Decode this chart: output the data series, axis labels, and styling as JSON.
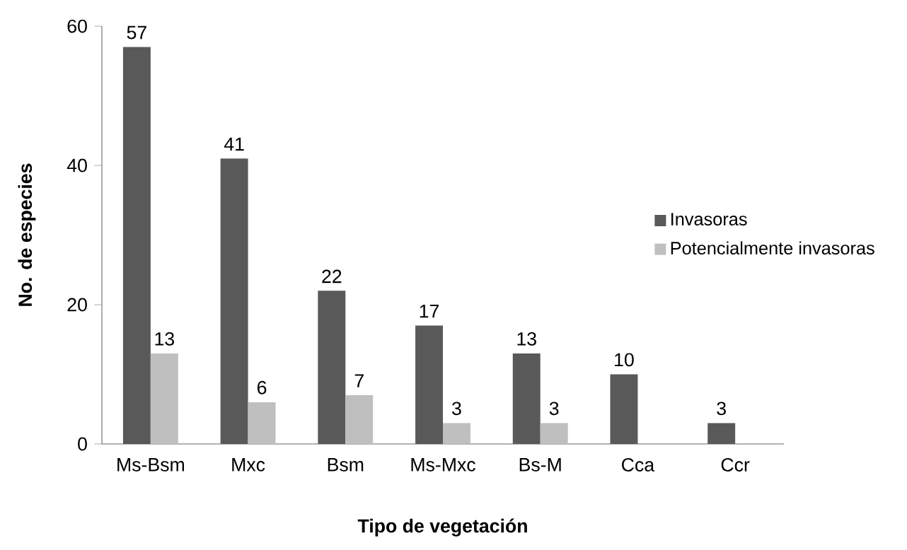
{
  "chart_data": {
    "type": "bar",
    "xlabel": "Tipo de vegetación",
    "ylabel": "No. de especies",
    "categories": [
      "Ms-Bsm",
      "Mxc",
      "Bsm",
      "Ms-Mxc",
      "Bs-M",
      "Cca",
      "Ccr"
    ],
    "series": [
      {
        "name": "Invasoras",
        "color": "#595959",
        "values": [
          57,
          41,
          22,
          17,
          13,
          10,
          3
        ]
      },
      {
        "name": "Potencialmente invasoras",
        "color": "#bfbfbf",
        "values": [
          13,
          6,
          7,
          3,
          3,
          null,
          null
        ]
      }
    ],
    "ylim": [
      0,
      60
    ],
    "yticks": [
      0,
      20,
      40,
      60
    ],
    "legend": "right",
    "data_labels": true
  }
}
